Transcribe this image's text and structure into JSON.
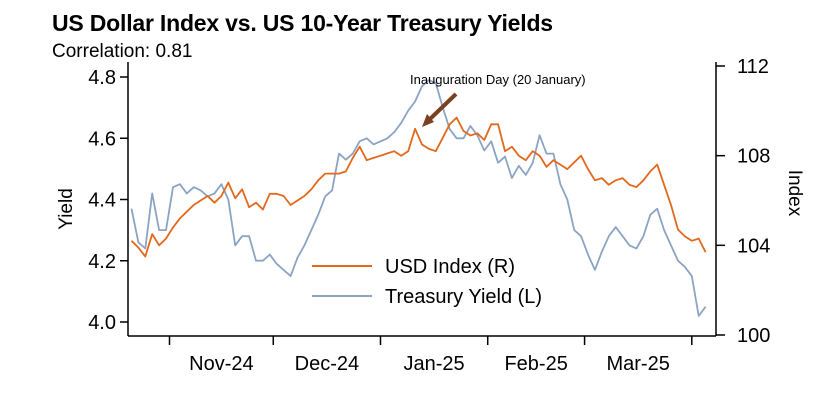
{
  "chart_data": {
    "type": "line",
    "title": "US Dollar Index vs. US 10-Year Treasury Yields",
    "subtitle": "Correlation: 0.81",
    "x_ticks": [
      "Nov-24",
      "Dec-24",
      "Jan-25",
      "Feb-25",
      "Mar-25"
    ],
    "y_left": {
      "label": "Yield",
      "range": [
        4.0,
        4.8
      ],
      "ticks": [
        "4.0",
        "4.2",
        "4.4",
        "4.6",
        "4.8"
      ]
    },
    "y_right": {
      "label": "Index",
      "range": [
        100,
        112
      ],
      "ticks": [
        "100",
        "104",
        "108",
        "112"
      ]
    },
    "annotation": {
      "text": "Inauguration Day (20 January)",
      "date": "2025-01-20"
    },
    "legend": [
      "USD Index (R)",
      "Treasury Yield (L)"
    ],
    "legend_position": "bottom-center",
    "grid": false,
    "colors": {
      "usd": "#E2681B",
      "treasury": "#8BA4C4",
      "arrow": "#7B3F22"
    },
    "series": [
      {
        "name": "USD Index (R)",
        "axis": "right",
        "x": [
          "2024-10-21",
          "2024-10-23",
          "2024-10-25",
          "2024-10-27",
          "2024-10-29",
          "2024-10-31",
          "2024-11-02",
          "2024-11-04",
          "2024-11-06",
          "2024-11-08",
          "2024-11-10",
          "2024-11-12",
          "2024-11-14",
          "2024-11-16",
          "2024-11-18",
          "2024-11-20",
          "2024-11-22",
          "2024-11-24",
          "2024-11-26",
          "2024-11-28",
          "2024-11-30",
          "2024-12-02",
          "2024-12-04",
          "2024-12-06",
          "2024-12-08",
          "2024-12-10",
          "2024-12-12",
          "2024-12-14",
          "2024-12-16",
          "2024-12-18",
          "2024-12-20",
          "2024-12-22",
          "2024-12-24",
          "2024-12-26",
          "2024-12-28",
          "2024-12-30",
          "2025-01-01",
          "2025-01-03",
          "2025-01-05",
          "2025-01-07",
          "2025-01-09",
          "2025-01-11",
          "2025-01-13",
          "2025-01-15",
          "2025-01-17",
          "2025-01-19",
          "2025-01-21",
          "2025-01-23",
          "2025-01-25",
          "2025-01-27",
          "2025-01-29",
          "2025-01-31",
          "2025-02-02",
          "2025-02-04",
          "2025-02-06",
          "2025-02-08",
          "2025-02-10",
          "2025-02-12",
          "2025-02-14",
          "2025-02-16",
          "2025-02-18",
          "2025-02-20",
          "2025-02-22",
          "2025-02-24",
          "2025-02-26",
          "2025-02-28",
          "2025-03-02",
          "2025-03-04",
          "2025-03-06",
          "2025-03-08",
          "2025-03-10",
          "2025-03-12",
          "2025-03-14",
          "2025-03-16",
          "2025-03-18",
          "2025-03-20",
          "2025-03-22",
          "2025-03-24",
          "2025-03-26",
          "2025-03-28",
          "2025-03-30",
          "2025-04-01",
          "2025-04-03",
          "2025-04-05"
        ],
        "values": [
          104.2,
          103.9,
          103.5,
          104.5,
          104.0,
          104.3,
          104.8,
          105.2,
          105.5,
          105.8,
          106.0,
          106.2,
          105.9,
          106.2,
          106.8,
          106.1,
          106.5,
          105.7,
          105.9,
          105.6,
          106.3,
          106.3,
          106.2,
          105.8,
          106.0,
          106.2,
          106.5,
          106.9,
          107.2,
          107.2,
          107.2,
          107.3,
          107.9,
          108.4,
          107.8,
          107.9,
          108.0,
          108.1,
          108.2,
          108.0,
          108.2,
          109.2,
          108.5,
          108.3,
          108.2,
          108.8,
          109.4,
          109.7,
          109.1,
          108.9,
          109.0,
          108.7,
          109.4,
          109.4,
          108.2,
          108.4,
          108.0,
          107.8,
          108.2,
          108.0,
          107.5,
          107.8,
          107.6,
          107.4,
          107.7,
          108.0,
          107.4,
          106.9,
          107.0,
          106.7,
          106.9,
          107.0,
          106.7,
          106.6,
          106.9,
          107.3,
          107.6,
          106.7,
          105.8,
          104.7,
          104.4,
          104.2,
          104.3,
          103.7
        ]
      },
      {
        "name": "Treasury Yield (L)",
        "axis": "left",
        "x": [
          "2024-10-21",
          "2024-10-23",
          "2024-10-25",
          "2024-10-27",
          "2024-10-29",
          "2024-10-31",
          "2024-11-02",
          "2024-11-04",
          "2024-11-06",
          "2024-11-08",
          "2024-11-10",
          "2024-11-12",
          "2024-11-14",
          "2024-11-16",
          "2024-11-18",
          "2024-11-20",
          "2024-11-22",
          "2024-11-24",
          "2024-11-26",
          "2024-11-28",
          "2024-11-30",
          "2024-12-02",
          "2024-12-04",
          "2024-12-06",
          "2024-12-08",
          "2024-12-10",
          "2024-12-12",
          "2024-12-14",
          "2024-12-16",
          "2024-12-18",
          "2024-12-20",
          "2024-12-22",
          "2024-12-24",
          "2024-12-26",
          "2024-12-28",
          "2024-12-30",
          "2025-01-01",
          "2025-01-03",
          "2025-01-05",
          "2025-01-07",
          "2025-01-09",
          "2025-01-11",
          "2025-01-13",
          "2025-01-15",
          "2025-01-17",
          "2025-01-19",
          "2025-01-21",
          "2025-01-23",
          "2025-01-25",
          "2025-01-27",
          "2025-01-29",
          "2025-01-31",
          "2025-02-02",
          "2025-02-04",
          "2025-02-06",
          "2025-02-08",
          "2025-02-10",
          "2025-02-12",
          "2025-02-14",
          "2025-02-16",
          "2025-02-18",
          "2025-02-20",
          "2025-02-22",
          "2025-02-24",
          "2025-02-26",
          "2025-02-28",
          "2025-03-02",
          "2025-03-04",
          "2025-03-06",
          "2025-03-08",
          "2025-03-10",
          "2025-03-12",
          "2025-03-14",
          "2025-03-16",
          "2025-03-18",
          "2025-03-20",
          "2025-03-22",
          "2025-03-24",
          "2025-03-26",
          "2025-03-28",
          "2025-03-30",
          "2025-04-01",
          "2025-04-03",
          "2025-04-05"
        ],
        "values": [
          4.37,
          4.26,
          4.24,
          4.42,
          4.3,
          4.3,
          4.44,
          4.45,
          4.42,
          4.44,
          4.43,
          4.41,
          4.42,
          4.45,
          4.4,
          4.25,
          4.28,
          4.28,
          4.2,
          4.2,
          4.22,
          4.19,
          4.17,
          4.15,
          4.21,
          4.25,
          4.3,
          4.35,
          4.41,
          4.43,
          4.55,
          4.53,
          4.55,
          4.59,
          4.6,
          4.58,
          4.59,
          4.6,
          4.62,
          4.65,
          4.69,
          4.72,
          4.77,
          4.79,
          4.78,
          4.7,
          4.63,
          4.6,
          4.6,
          4.64,
          4.61,
          4.56,
          4.59,
          4.52,
          4.54,
          4.47,
          4.51,
          4.48,
          4.52,
          4.61,
          4.55,
          4.55,
          4.45,
          4.4,
          4.3,
          4.28,
          4.22,
          4.17,
          4.23,
          4.28,
          4.31,
          4.28,
          4.25,
          4.24,
          4.28,
          4.35,
          4.37,
          4.3,
          4.25,
          4.2,
          4.18,
          4.15,
          4.02,
          4.05
        ]
      }
    ]
  }
}
